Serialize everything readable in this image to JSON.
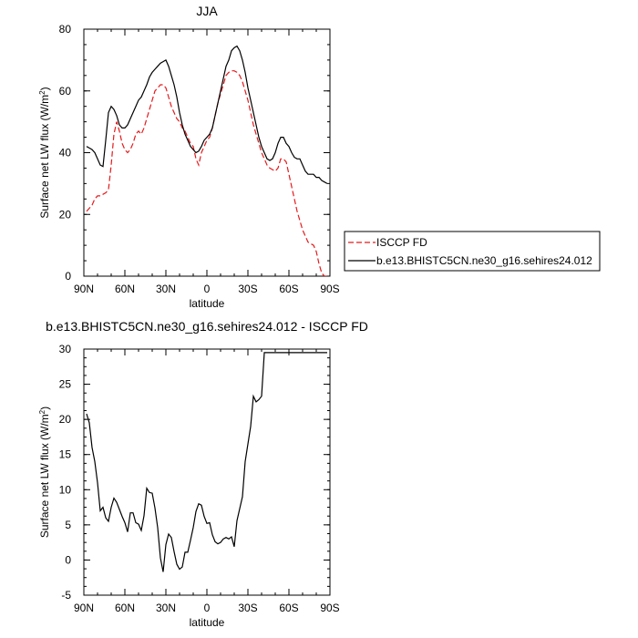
{
  "chart_data": [
    {
      "type": "line",
      "title": "JJA",
      "xlabel": "latitude",
      "ylabel": "Surface net LW flux (W/m",
      "ylabel_sup": "2",
      "ylabel_close": ")",
      "xlim": [
        90,
        -90
      ],
      "ylim": [
        0,
        80
      ],
      "x_ticks": [
        {
          "value": 90,
          "label": "90N"
        },
        {
          "value": 60,
          "label": "60N"
        },
        {
          "value": 30,
          "label": "30N"
        },
        {
          "value": 0,
          "label": "0"
        },
        {
          "value": -30,
          "label": "30S"
        },
        {
          "value": -60,
          "label": "60S"
        },
        {
          "value": -90,
          "label": "90S"
        }
      ],
      "y_ticks": [
        0,
        20,
        40,
        60,
        80
      ],
      "legend_position": "right",
      "series": [
        {
          "name": "ISCCP FD",
          "color": "#e41a1c",
          "dash": true,
          "x": [
            88,
            86,
            84,
            82,
            80,
            78,
            76,
            74,
            72,
            70,
            68,
            66,
            64,
            62,
            60,
            58,
            56,
            54,
            52,
            50,
            48,
            46,
            44,
            42,
            40,
            38,
            36,
            34,
            32,
            30,
            28,
            26,
            24,
            22,
            20,
            18,
            16,
            14,
            12,
            10,
            8,
            6,
            4,
            2,
            0,
            -2,
            -4,
            -6,
            -8,
            -10,
            -12,
            -14,
            -16,
            -18,
            -20,
            -22,
            -24,
            -26,
            -28,
            -30,
            -32,
            -34,
            -36,
            -38,
            -40,
            -42,
            -44,
            -46,
            -48,
            -50,
            -52,
            -54,
            -56,
            -58,
            -60,
            -62,
            -64,
            -66,
            -68,
            -70,
            -72,
            -74,
            -76,
            -78,
            -80,
            -82,
            -84,
            -86,
            -88
          ],
          "y": [
            21,
            22,
            23,
            25,
            26,
            26,
            26.5,
            27,
            28,
            36,
            46,
            50,
            47,
            43,
            41,
            40,
            41,
            43,
            46,
            47,
            46,
            48,
            51,
            54,
            57,
            60,
            61,
            62,
            62,
            61,
            58,
            55,
            53,
            51,
            50,
            48,
            47,
            45,
            43,
            42,
            38,
            36,
            40,
            42,
            44,
            45,
            48,
            52,
            56,
            59,
            62,
            65,
            66,
            66.5,
            66.5,
            66,
            65,
            63,
            60,
            57,
            53,
            49,
            46,
            43,
            40,
            38,
            36,
            35,
            34.5,
            34,
            35,
            38,
            38,
            37,
            33,
            29,
            25,
            21,
            18,
            15,
            13,
            11,
            10.5,
            10,
            8,
            4,
            1,
            0,
            0
          ]
        },
        {
          "name": "b.e13.BHISTC5CN.ne30_g16.sehires24.012",
          "color": "#000000",
          "dash": false,
          "x": [
            88,
            86,
            84,
            82,
            80,
            78,
            76,
            74,
            72,
            70,
            68,
            66,
            64,
            62,
            60,
            58,
            56,
            54,
            52,
            50,
            48,
            46,
            44,
            42,
            40,
            38,
            36,
            34,
            32,
            30,
            28,
            26,
            24,
            22,
            20,
            18,
            16,
            14,
            12,
            10,
            8,
            6,
            4,
            2,
            0,
            -2,
            -4,
            -6,
            -8,
            -10,
            -12,
            -14,
            -16,
            -18,
            -20,
            -22,
            -24,
            -26,
            -28,
            -30,
            -32,
            -34,
            -36,
            -38,
            -40,
            -42,
            -44,
            -46,
            -48,
            -50,
            -52,
            -54,
            -56,
            -58,
            -60,
            -62,
            -64,
            -66,
            -68,
            -70,
            -72,
            -74,
            -76,
            -78,
            -80,
            -82,
            -84,
            -86,
            -88
          ],
          "y": [
            42,
            41.5,
            41,
            40,
            38,
            36,
            35.5,
            44,
            53,
            55,
            54,
            52,
            49,
            48,
            48,
            49,
            51,
            53,
            55,
            57,
            58,
            60,
            62,
            64.5,
            66,
            67,
            68,
            69,
            69.5,
            70,
            68,
            65,
            62,
            58,
            53,
            49,
            46,
            44,
            42,
            41,
            40,
            40.5,
            42,
            44,
            45,
            46,
            48,
            52,
            56,
            60,
            64,
            68,
            70,
            73,
            74,
            74.5,
            73,
            70,
            66,
            61,
            57,
            53,
            49,
            45,
            42,
            40,
            38,
            37.5,
            38,
            40,
            43,
            45,
            45,
            43,
            42,
            40,
            38.5,
            38,
            38,
            36,
            34,
            33,
            33,
            33,
            32,
            32,
            31,
            30.5,
            30
          ]
        }
      ]
    },
    {
      "type": "line",
      "title": "b.e13.BHISTC5CN.ne30_g16.sehires24.012 - ISCCP FD",
      "xlabel": "latitude",
      "ylabel": "Surface net LW flux (W/m",
      "ylabel_sup": "2",
      "ylabel_close": ")",
      "xlim": [
        90,
        -90
      ],
      "ylim": [
        -5,
        30
      ],
      "x_ticks": [
        {
          "value": 90,
          "label": "90N"
        },
        {
          "value": 60,
          "label": "60N"
        },
        {
          "value": 30,
          "label": "30N"
        },
        {
          "value": 0,
          "label": "0"
        },
        {
          "value": -30,
          "label": "30S"
        },
        {
          "value": -60,
          "label": "60S"
        },
        {
          "value": -90,
          "label": "90S"
        }
      ],
      "y_ticks": [
        -5,
        0,
        5,
        10,
        15,
        20,
        25,
        30
      ],
      "series": [
        {
          "color": "#000000",
          "dash": false,
          "x": [
            88,
            86,
            84,
            82,
            80,
            78,
            76,
            74,
            72,
            70,
            68,
            66,
            64,
            62,
            60,
            58,
            56,
            54,
            52,
            50,
            48,
            46,
            44,
            42,
            40,
            38,
            36,
            34,
            32,
            30,
            28,
            26,
            24,
            22,
            20,
            18,
            16,
            14,
            12,
            10,
            8,
            6,
            4,
            2,
            0,
            -2,
            -4,
            -6,
            -8,
            -10,
            -12,
            -14,
            -16,
            -18,
            -20,
            -22,
            -24,
            -26,
            -28,
            -30,
            -32,
            -34,
            -36,
            -38,
            -40,
            -42,
            -44,
            -46,
            -48,
            -50,
            -52,
            -54,
            -56,
            -58,
            -60,
            -62,
            -64,
            -66,
            -68,
            -70,
            -72,
            -74,
            -76,
            -78,
            -80,
            -82,
            -84,
            -86,
            -88
          ],
          "y": [
            20.8,
            19.5,
            16,
            14,
            11,
            7,
            7.5,
            6,
            5.5,
            7.5,
            8.8,
            8.2,
            7.2,
            6.2,
            5.3,
            4,
            6.7,
            6.7,
            5.3,
            5.1,
            4.2,
            6.3,
            10.2,
            9.6,
            9.5,
            7.4,
            4.6,
            0.3,
            -1.7,
            2.2,
            3.7,
            3.2,
            1.2,
            -0.6,
            -1.3,
            -1,
            1.1,
            1.1,
            2.8,
            4.6,
            6.9,
            8,
            7.8,
            6.2,
            5.2,
            5.3,
            3.6,
            2.6,
            2.3,
            2.5,
            3,
            3.2,
            3,
            3.3,
            1.9,
            5.6,
            7.3,
            9,
            14,
            16.5,
            19,
            23.3,
            22.5,
            22.8,
            23.3,
            29.5,
            29.5,
            29.5,
            29.5,
            29.5,
            29.5,
            29.5,
            29.5,
            29.5,
            29.5,
            29.5,
            29.5,
            29.5,
            29.5,
            29.5,
            29.5,
            29.5,
            29.5,
            29.5,
            29.5,
            29.5,
            29.5,
            29.5,
            29.5
          ]
        }
      ]
    }
  ]
}
